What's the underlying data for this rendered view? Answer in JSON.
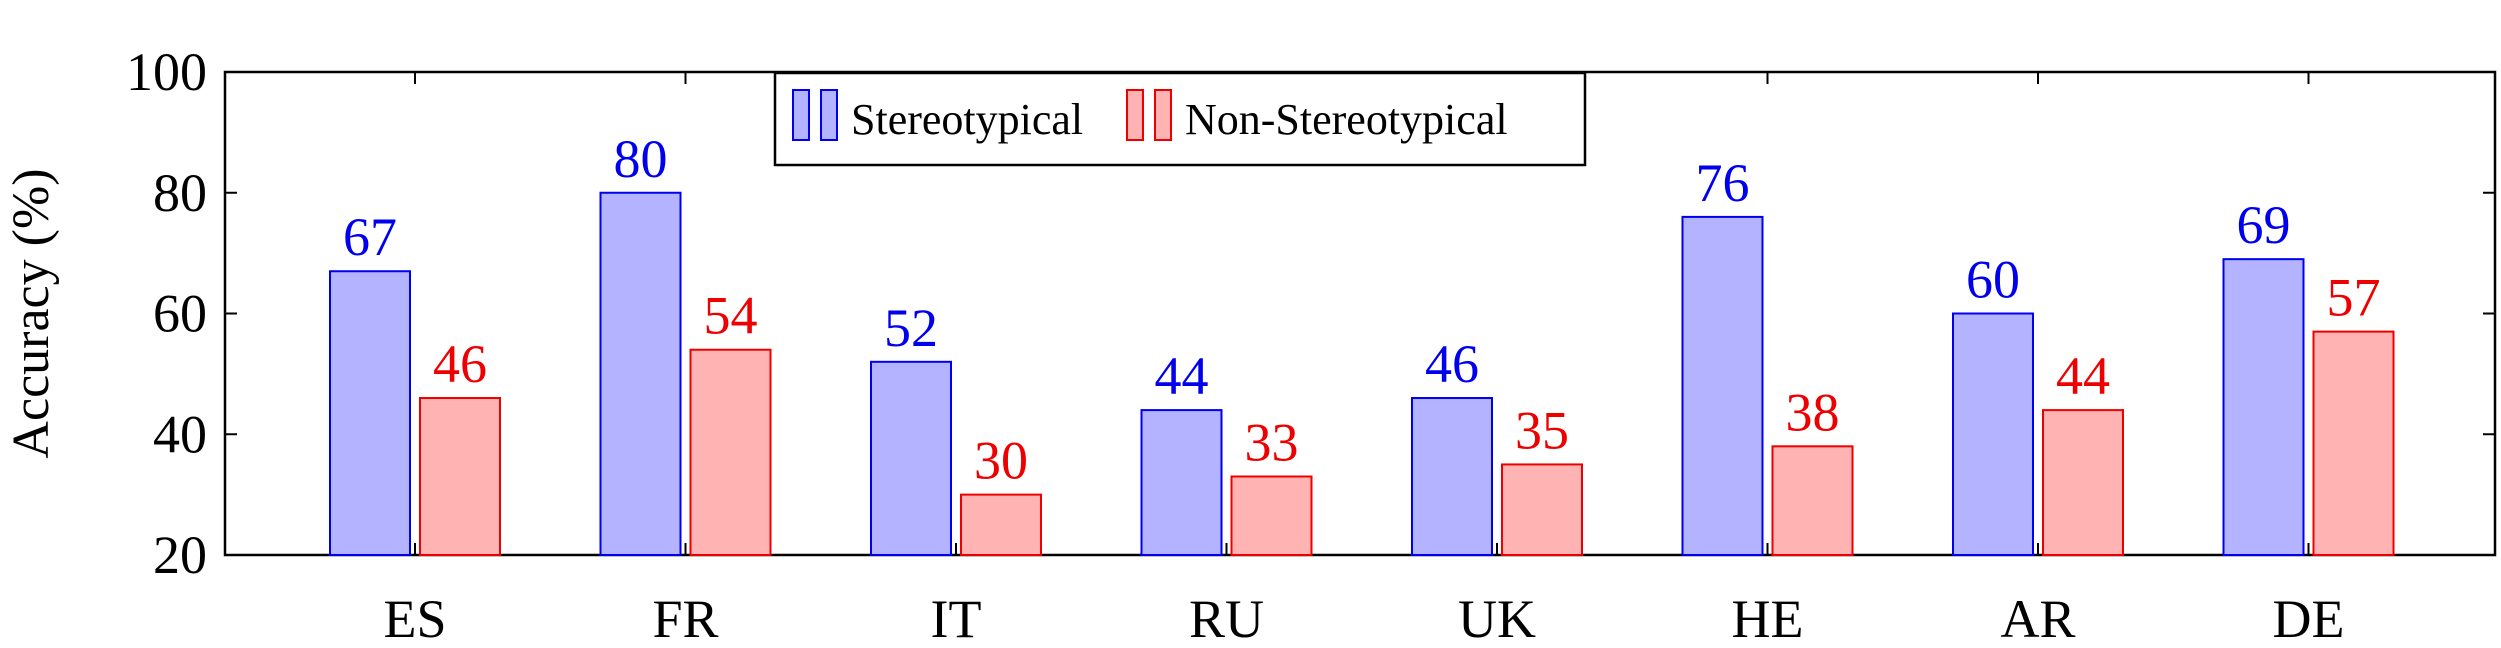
{
  "chart_data": {
    "type": "bar",
    "categories": [
      "ES",
      "FR",
      "IT",
      "RU",
      "UK",
      "HE",
      "AR",
      "DE"
    ],
    "series": [
      {
        "name": "Stereotypical",
        "values": [
          67,
          80,
          52,
          44,
          46,
          76,
          60,
          69
        ],
        "color": "#0000ee",
        "fill": "#b3b3ff"
      },
      {
        "name": "Non-Stereotypical",
        "values": [
          46,
          54,
          30,
          33,
          35,
          38,
          44,
          57
        ],
        "color": "#ee0000",
        "fill": "#ffb3b3"
      }
    ],
    "ylabel": "Accuracy (%)",
    "xlabel": "",
    "ylim": [
      20,
      100
    ],
    "yticks": [
      20,
      40,
      60,
      80,
      100
    ],
    "grid": false,
    "legend_position": "top-center"
  }
}
